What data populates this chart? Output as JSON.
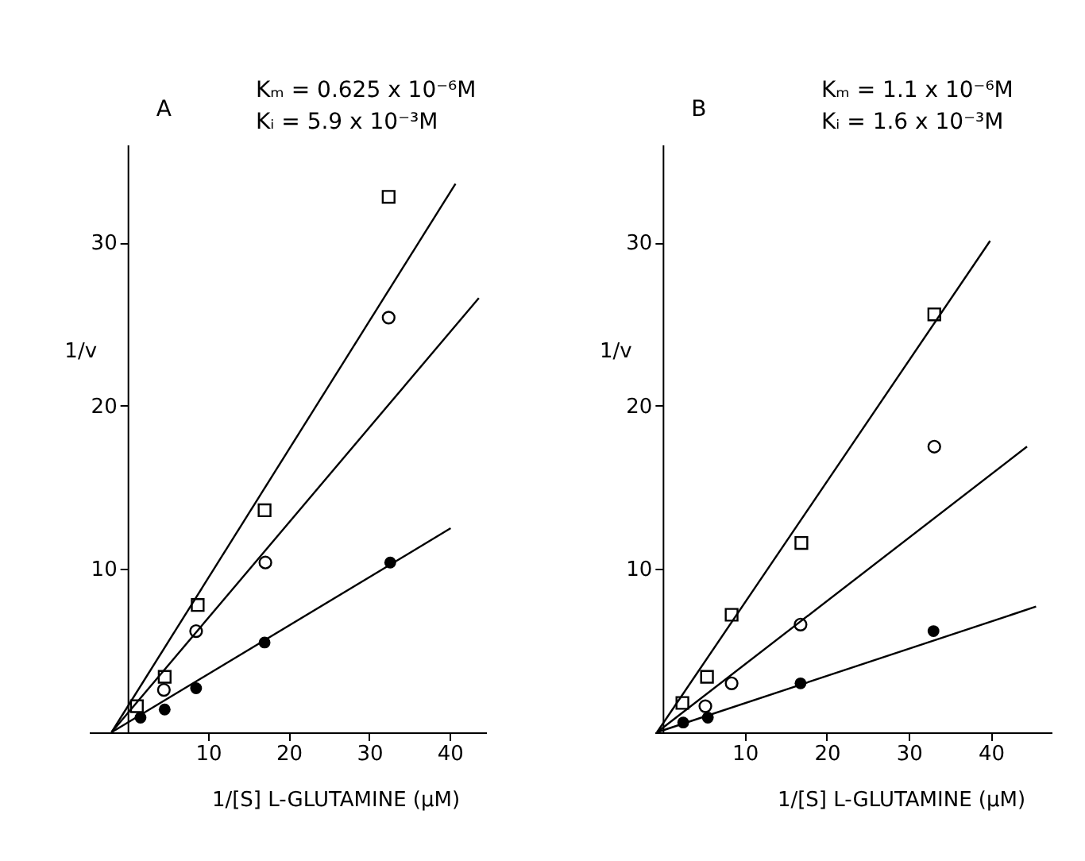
{
  "chart_data": [
    {
      "type": "scatter",
      "xlabel": "1/[S] L-GLUTAMINE (μM)",
      "ylabel": "1/v",
      "annotations": [
        "A",
        "Kₘ = 0.625 x 10⁻⁶M",
        "Kᵢ = 5.9 x 10⁻³M"
      ],
      "xlim": [
        -4.8,
        44.5
      ],
      "xticks": [
        10,
        20,
        30,
        40
      ],
      "ylim": [
        0,
        36
      ],
      "yticks": [
        10,
        20,
        30
      ],
      "series": [
        {
          "color": "#000000",
          "marker": "square",
          "x": [
            1.15,
            4.6,
            8.7,
            17.0,
            32.4
          ],
          "values": [
            1.6,
            3.4,
            7.8,
            13.6,
            32.8
          ]
        },
        {
          "color": "#000000",
          "marker": "circle",
          "x": [
            4.5,
            8.5,
            17.1,
            32.4
          ],
          "values": [
            2.6,
            6.2,
            10.4,
            25.4
          ]
        },
        {
          "color": "#000000",
          "marker": "circle",
          "x": [
            1.6,
            4.6,
            8.5,
            17.0,
            32.6
          ],
          "values": [
            0.9,
            1.4,
            2.7,
            5.5,
            10.4
          ]
        },
        {
          "type": "line",
          "color": "#000000",
          "x": [
            -2,
            40.7
          ],
          "values": [
            0,
            33.6
          ]
        },
        {
          "type": "line",
          "color": "#000000",
          "x": [
            -2,
            43.6
          ],
          "values": [
            0,
            26.6
          ]
        },
        {
          "type": "line",
          "color": "#000000",
          "x": [
            -2,
            40.1
          ],
          "values": [
            0,
            12.5
          ]
        }
      ]
    },
    {
      "type": "scatter",
      "xlabel": "1/[S] L-GLUTAMINE (μM)",
      "ylabel": "1/v",
      "annotations": [
        "B",
        "Kₘ = 1.1 x 10⁻⁶M",
        "Kᵢ = 1.6 x 10⁻³M"
      ],
      "xlim": [
        -1.0,
        47.4
      ],
      "xticks": [
        10,
        20,
        30,
        40
      ],
      "ylim": [
        0,
        36
      ],
      "yticks": [
        10,
        20,
        30
      ],
      "series": [
        {
          "color": "#000000",
          "marker": "square",
          "x": [
            2.4,
            5.4,
            8.4,
            16.9,
            33.1
          ],
          "values": [
            1.8,
            3.4,
            7.2,
            11.6,
            25.6
          ]
        },
        {
          "color": "#000000",
          "marker": "circle",
          "x": [
            5.2,
            8.4,
            16.8,
            33.1
          ],
          "values": [
            1.6,
            3.0,
            6.6,
            17.5
          ]
        },
        {
          "color": "#000000",
          "marker": "circle",
          "x": [
            2.5,
            5.5,
            16.8,
            33.0
          ],
          "values": [
            0.6,
            0.9,
            3.0,
            6.2
          ]
        },
        {
          "type": "line",
          "color": "#000000",
          "x": [
            -0.7,
            39.9
          ],
          "values": [
            0,
            30.1
          ]
        },
        {
          "type": "line",
          "color": "#000000",
          "x": [
            -0.7,
            44.4
          ],
          "values": [
            0,
            17.5
          ]
        },
        {
          "type": "line",
          "color": "#000000",
          "x": [
            -0.7,
            45.5
          ],
          "values": [
            0,
            7.7
          ]
        }
      ]
    }
  ]
}
